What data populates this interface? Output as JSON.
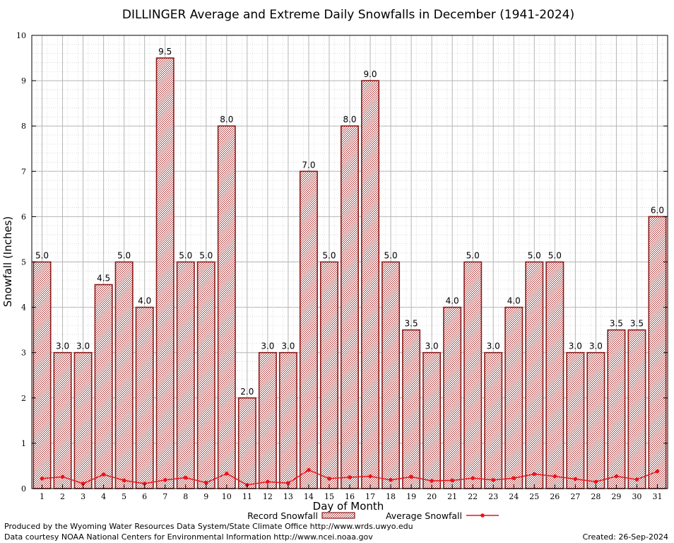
{
  "chart_data": {
    "type": "bar",
    "title": "DILLINGER Average and Extreme Daily Snowfalls in December (1941-2024)",
    "xlabel": "Day of Month",
    "ylabel": "Snowfall (Inches)",
    "ylim": [
      0,
      10
    ],
    "yticks": [
      0,
      1,
      2,
      3,
      4,
      5,
      6,
      7,
      8,
      9,
      10
    ],
    "grid": true,
    "categories": [
      "1",
      "2",
      "3",
      "4",
      "5",
      "6",
      "7",
      "8",
      "9",
      "10",
      "11",
      "12",
      "13",
      "14",
      "15",
      "16",
      "17",
      "18",
      "19",
      "20",
      "21",
      "22",
      "23",
      "24",
      "25",
      "26",
      "27",
      "28",
      "29",
      "30",
      "31"
    ],
    "series": [
      {
        "name": "Record Snowfall",
        "kind": "bar",
        "color": "#b22222",
        "values": [
          5.0,
          3.0,
          3.0,
          4.5,
          5.0,
          4.0,
          9.5,
          5.0,
          5.0,
          8.0,
          2.0,
          3.0,
          3.0,
          7.0,
          5.0,
          8.0,
          9.0,
          5.0,
          3.5,
          3.0,
          4.0,
          5.0,
          3.0,
          4.0,
          5.0,
          5.0,
          3.0,
          3.0,
          3.5,
          3.5,
          6.0
        ],
        "value_labels": [
          "5.0",
          "3.0",
          "3.0",
          "4.5",
          "5.0",
          "4.0",
          "9.5",
          "5.0",
          "5.0",
          "8.0",
          "2.0",
          "3.0",
          "3.0",
          "7.0",
          "5.0",
          "8.0",
          "9.0",
          "5.0",
          "3.5",
          "3.0",
          "4.0",
          "5.0",
          "3.0",
          "4.0",
          "5.0",
          "5.0",
          "3.0",
          "3.0",
          "3.5",
          "3.5",
          "6.0"
        ]
      },
      {
        "name": "Average Snowfall",
        "kind": "line",
        "color": "#e8141c",
        "values": [
          0.22,
          0.26,
          0.11,
          0.31,
          0.18,
          0.11,
          0.19,
          0.24,
          0.13,
          0.33,
          0.08,
          0.15,
          0.12,
          0.41,
          0.22,
          0.25,
          0.27,
          0.19,
          0.26,
          0.17,
          0.18,
          0.23,
          0.19,
          0.23,
          0.32,
          0.27,
          0.21,
          0.15,
          0.27,
          0.2,
          0.38
        ]
      }
    ],
    "legend": {
      "position": "bottom"
    }
  },
  "footer": {
    "produced_by": "Produced by the Wyoming Water Resources Data System/State Climate Office http://www.wrds.uwyo.edu",
    "courtesy": "Data courtesy NOAA National Centers for Environmental Information http://www.ncei.noaa.gov",
    "created": "Created: 26-Sep-2024"
  }
}
